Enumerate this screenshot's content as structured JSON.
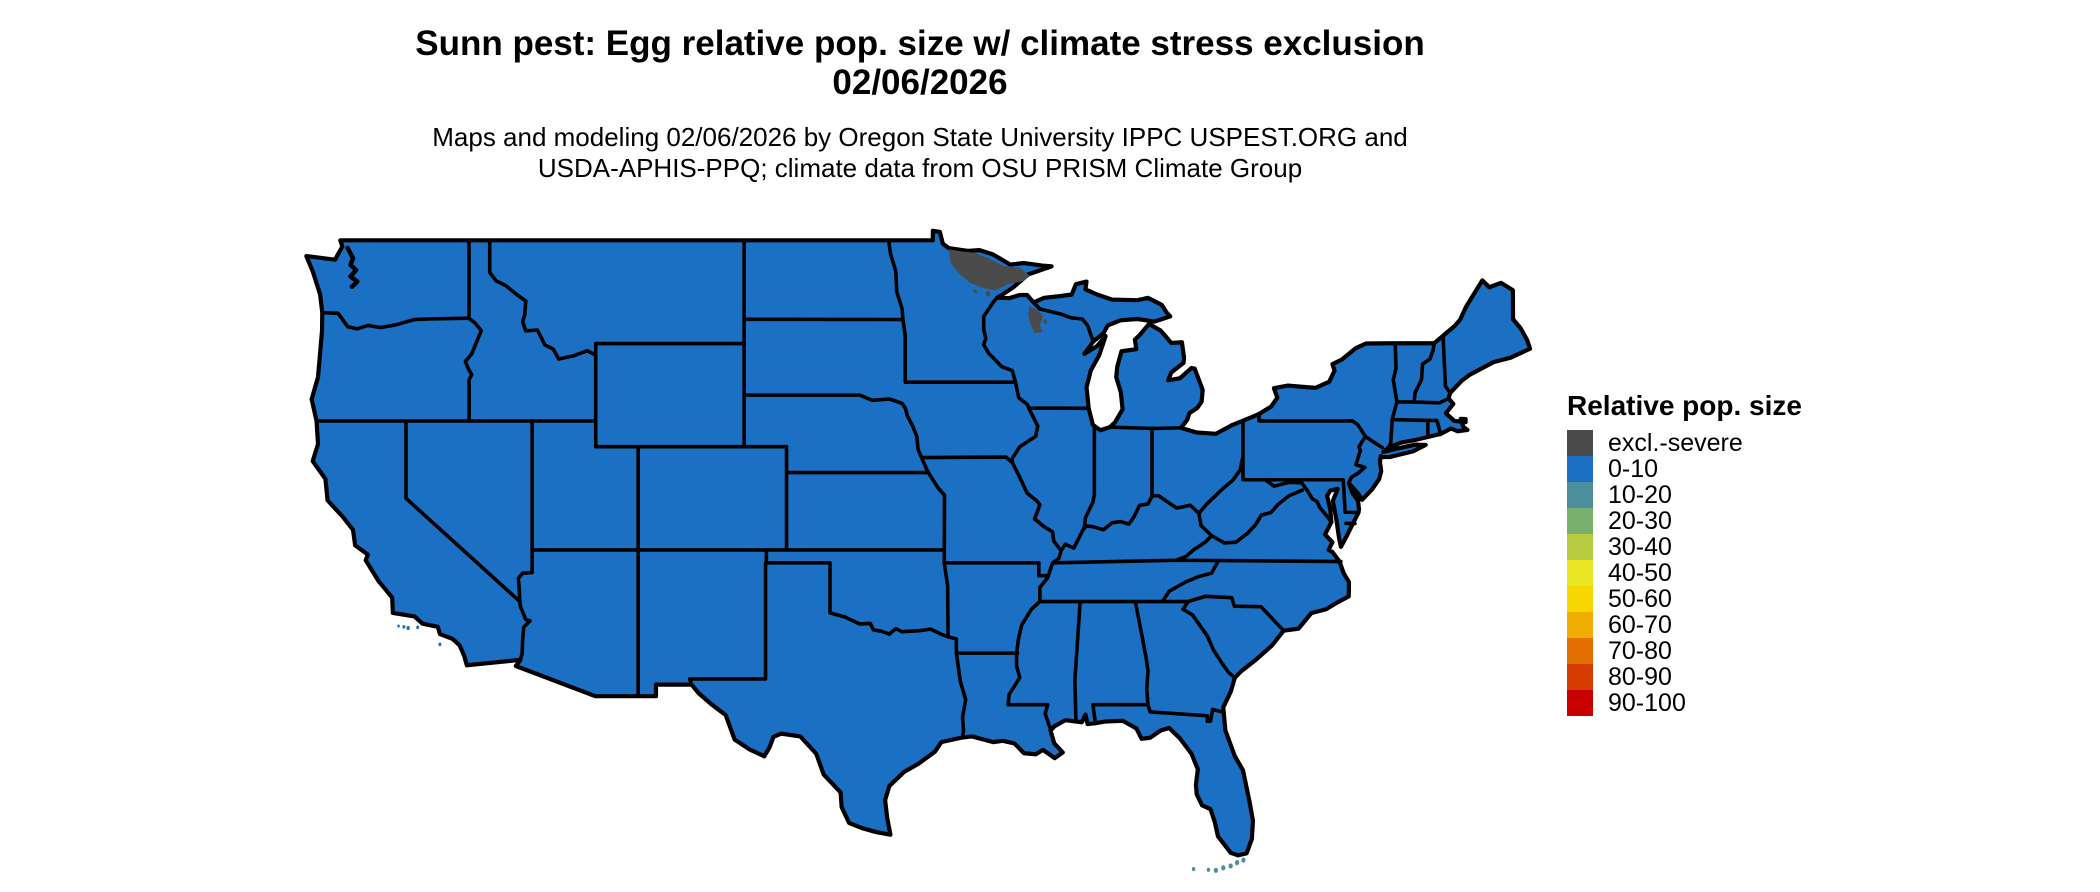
{
  "title": {
    "line1": "Sunn pest: Egg relative pop. size w/ climate stress exclusion",
    "line2": "02/06/2026"
  },
  "subtitle": {
    "line1": "Maps and modeling 02/06/2026 by Oregon State University IPPC USPEST.ORG and",
    "line2": "USDA-APHIS-PPQ; climate data from OSU PRISM Climate Group"
  },
  "legend": {
    "title": "Relative pop. size",
    "items": [
      {
        "label": "excl.-severe",
        "color": "#4b4b4b"
      },
      {
        "label": "0-10",
        "color": "#1b70c3"
      },
      {
        "label": "10-20",
        "color": "#4a8f9b"
      },
      {
        "label": "20-30",
        "color": "#7ab06e"
      },
      {
        "label": "30-40",
        "color": "#b8cc42"
      },
      {
        "label": "40-50",
        "color": "#e9e723"
      },
      {
        "label": "50-60",
        "color": "#f8d600"
      },
      {
        "label": "60-70",
        "color": "#eead00"
      },
      {
        "label": "70-80",
        "color": "#e17000"
      },
      {
        "label": "80-90",
        "color": "#d63c00"
      },
      {
        "label": "90-100",
        "color": "#c80000"
      }
    ]
  },
  "colors": {
    "state_fill": "#1b70c3",
    "border": "#000000",
    "exclusion": "#4b4b4b",
    "keys_fill": "#4a8f9b",
    "background": "#ffffff"
  },
  "map_data": {
    "type": "choropleth",
    "region": "contiguous United States",
    "unit": "Relative pop. size",
    "regions": [
      {
        "area": "contiguous US states (nearly all)",
        "value": "0-10"
      },
      {
        "area": "northern Minnesota border/arrowhead region",
        "value": "excl.-severe"
      },
      {
        "area": "north-central Wisconsin",
        "value": "excl.-severe"
      },
      {
        "area": "Florida Keys",
        "value": "10-20"
      }
    ]
  }
}
